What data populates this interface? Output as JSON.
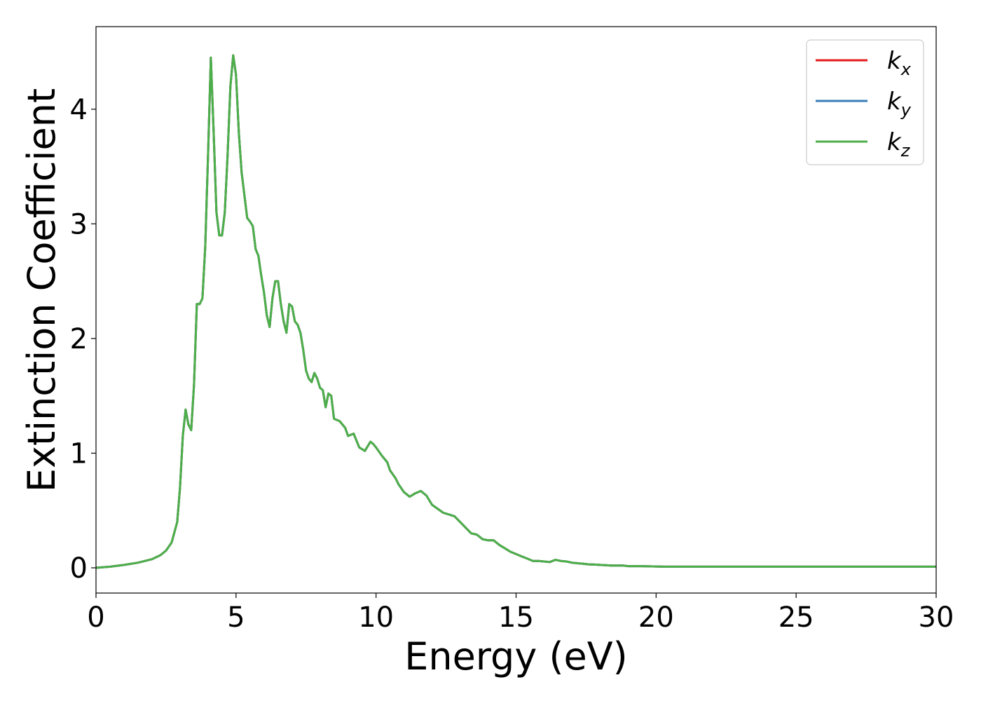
{
  "chart_data": {
    "type": "line",
    "title": "",
    "xlabel": "Energy (eV)",
    "ylabel": "Extinction Coefficient",
    "xlim": [
      0,
      30
    ],
    "ylim": [
      -0.22,
      4.72
    ],
    "xticks": [
      0,
      5,
      10,
      15,
      20,
      25,
      30
    ],
    "yticks": [
      0,
      1,
      2,
      3,
      4
    ],
    "grid": false,
    "legend_position": "top-right",
    "x": [
      0,
      0.5,
      1.0,
      1.5,
      2.0,
      2.3,
      2.5,
      2.7,
      2.9,
      3.0,
      3.1,
      3.2,
      3.3,
      3.4,
      3.5,
      3.6,
      3.7,
      3.8,
      3.9,
      4.0,
      4.1,
      4.2,
      4.3,
      4.4,
      4.5,
      4.6,
      4.7,
      4.8,
      4.9,
      5.0,
      5.1,
      5.2,
      5.3,
      5.4,
      5.5,
      5.6,
      5.7,
      5.8,
      5.9,
      6.0,
      6.1,
      6.2,
      6.3,
      6.4,
      6.5,
      6.6,
      6.7,
      6.8,
      6.9,
      7.0,
      7.1,
      7.2,
      7.3,
      7.4,
      7.5,
      7.6,
      7.7,
      7.8,
      7.9,
      8.0,
      8.1,
      8.2,
      8.3,
      8.4,
      8.5,
      8.7,
      8.9,
      9.0,
      9.2,
      9.4,
      9.6,
      9.8,
      9.9,
      10.0,
      10.2,
      10.4,
      10.5,
      10.7,
      10.8,
      11.0,
      11.2,
      11.4,
      11.6,
      11.8,
      12.0,
      12.4,
      12.8,
      13.0,
      13.2,
      13.4,
      13.6,
      13.8,
      14.0,
      14.2,
      14.4,
      14.6,
      14.8,
      15.0,
      15.2,
      15.4,
      15.6,
      15.8,
      16.0,
      16.2,
      16.4,
      16.6,
      16.8,
      17.0,
      17.2,
      17.4,
      17.6,
      17.8,
      18.0,
      18.4,
      18.8,
      19.0,
      19.5,
      20.0,
      20.3,
      20.6,
      21.0,
      21.5,
      22.0,
      22.5,
      23.0,
      24.0,
      25.0,
      26.0,
      27.0,
      28.0,
      29.0,
      30.0
    ],
    "series": [
      {
        "name": "k_x",
        "label": "k",
        "subscript": "x",
        "color": "#e41a1c",
        "values": [
          0.0,
          0.01,
          0.025,
          0.045,
          0.075,
          0.11,
          0.15,
          0.22,
          0.4,
          0.7,
          1.15,
          1.38,
          1.25,
          1.2,
          1.6,
          2.3,
          2.3,
          2.35,
          2.8,
          3.6,
          4.45,
          3.8,
          3.1,
          2.9,
          2.9,
          3.1,
          3.6,
          4.2,
          4.47,
          4.3,
          3.8,
          3.45,
          3.25,
          3.05,
          3.02,
          2.98,
          2.78,
          2.72,
          2.55,
          2.4,
          2.2,
          2.1,
          2.35,
          2.5,
          2.5,
          2.3,
          2.15,
          2.05,
          2.3,
          2.28,
          2.15,
          2.12,
          2.05,
          1.9,
          1.72,
          1.65,
          1.62,
          1.7,
          1.65,
          1.57,
          1.55,
          1.4,
          1.52,
          1.5,
          1.3,
          1.28,
          1.22,
          1.15,
          1.17,
          1.05,
          1.02,
          1.1,
          1.08,
          1.05,
          0.98,
          0.92,
          0.85,
          0.78,
          0.73,
          0.66,
          0.62,
          0.65,
          0.67,
          0.63,
          0.55,
          0.48,
          0.45,
          0.4,
          0.35,
          0.3,
          0.29,
          0.25,
          0.24,
          0.24,
          0.2,
          0.17,
          0.14,
          0.12,
          0.1,
          0.08,
          0.06,
          0.06,
          0.055,
          0.05,
          0.07,
          0.06,
          0.055,
          0.045,
          0.04,
          0.035,
          0.03,
          0.028,
          0.025,
          0.02,
          0.02,
          0.015,
          0.015,
          0.012,
          0.01,
          0.01,
          0.01,
          0.01,
          0.01,
          0.01,
          0.01,
          0.01,
          0.01,
          0.01,
          0.01,
          0.01,
          0.01,
          0.01
        ]
      },
      {
        "name": "k_y",
        "label": "k",
        "subscript": "y",
        "color": "#377eb8",
        "values": [
          0.0,
          0.01,
          0.025,
          0.045,
          0.075,
          0.11,
          0.15,
          0.22,
          0.4,
          0.7,
          1.15,
          1.38,
          1.25,
          1.2,
          1.6,
          2.3,
          2.3,
          2.35,
          2.8,
          3.6,
          4.45,
          3.8,
          3.1,
          2.9,
          2.9,
          3.1,
          3.6,
          4.2,
          4.47,
          4.3,
          3.8,
          3.45,
          3.25,
          3.05,
          3.02,
          2.98,
          2.78,
          2.72,
          2.55,
          2.4,
          2.2,
          2.1,
          2.35,
          2.5,
          2.5,
          2.3,
          2.15,
          2.05,
          2.3,
          2.28,
          2.15,
          2.12,
          2.05,
          1.9,
          1.72,
          1.65,
          1.62,
          1.7,
          1.65,
          1.57,
          1.55,
          1.4,
          1.52,
          1.5,
          1.3,
          1.28,
          1.22,
          1.15,
          1.17,
          1.05,
          1.02,
          1.1,
          1.08,
          1.05,
          0.98,
          0.92,
          0.85,
          0.78,
          0.73,
          0.66,
          0.62,
          0.65,
          0.67,
          0.63,
          0.55,
          0.48,
          0.45,
          0.4,
          0.35,
          0.3,
          0.29,
          0.25,
          0.24,
          0.24,
          0.2,
          0.17,
          0.14,
          0.12,
          0.1,
          0.08,
          0.06,
          0.06,
          0.055,
          0.05,
          0.07,
          0.06,
          0.055,
          0.045,
          0.04,
          0.035,
          0.03,
          0.028,
          0.025,
          0.02,
          0.02,
          0.015,
          0.015,
          0.012,
          0.01,
          0.01,
          0.01,
          0.01,
          0.01,
          0.01,
          0.01,
          0.01,
          0.01,
          0.01,
          0.01,
          0.01,
          0.01,
          0.01
        ]
      },
      {
        "name": "k_z",
        "label": "k",
        "subscript": "z",
        "color": "#4daf4a",
        "values": [
          0.0,
          0.01,
          0.025,
          0.045,
          0.075,
          0.11,
          0.15,
          0.22,
          0.4,
          0.7,
          1.15,
          1.38,
          1.25,
          1.2,
          1.6,
          2.3,
          2.3,
          2.35,
          2.8,
          3.6,
          4.45,
          3.8,
          3.1,
          2.9,
          2.9,
          3.1,
          3.6,
          4.2,
          4.47,
          4.3,
          3.8,
          3.45,
          3.25,
          3.05,
          3.02,
          2.98,
          2.78,
          2.72,
          2.55,
          2.4,
          2.2,
          2.1,
          2.35,
          2.5,
          2.5,
          2.3,
          2.15,
          2.05,
          2.3,
          2.28,
          2.15,
          2.12,
          2.05,
          1.9,
          1.72,
          1.65,
          1.62,
          1.7,
          1.65,
          1.57,
          1.55,
          1.4,
          1.52,
          1.5,
          1.3,
          1.28,
          1.22,
          1.15,
          1.17,
          1.05,
          1.02,
          1.1,
          1.08,
          1.05,
          0.98,
          0.92,
          0.85,
          0.78,
          0.73,
          0.66,
          0.62,
          0.65,
          0.67,
          0.63,
          0.55,
          0.48,
          0.45,
          0.4,
          0.35,
          0.3,
          0.29,
          0.25,
          0.24,
          0.24,
          0.2,
          0.17,
          0.14,
          0.12,
          0.1,
          0.08,
          0.06,
          0.06,
          0.055,
          0.05,
          0.07,
          0.06,
          0.055,
          0.045,
          0.04,
          0.035,
          0.03,
          0.028,
          0.025,
          0.02,
          0.02,
          0.015,
          0.015,
          0.012,
          0.01,
          0.01,
          0.01,
          0.01,
          0.01,
          0.01,
          0.01,
          0.01,
          0.01,
          0.01,
          0.01,
          0.01,
          0.01,
          0.01
        ]
      }
    ]
  }
}
